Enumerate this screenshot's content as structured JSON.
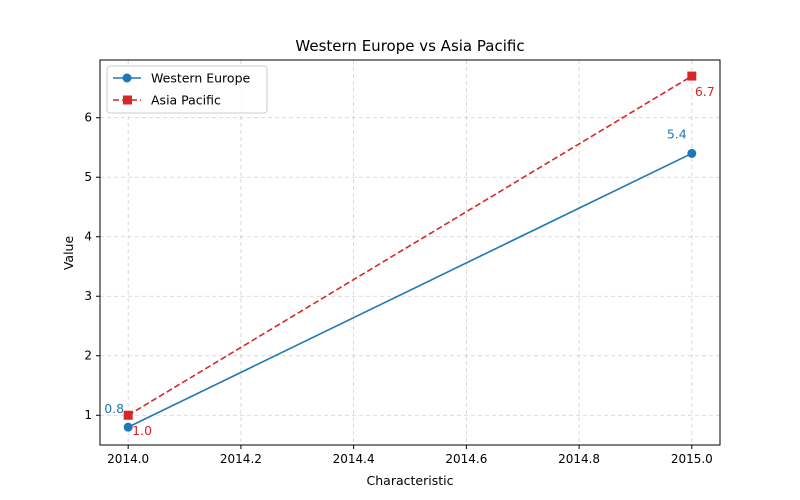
{
  "chart_data": {
    "type": "line",
    "title": "Western Europe vs Asia Pacific",
    "xlabel": "Characteristic",
    "ylabel": "Value",
    "x": [
      2014,
      2015
    ],
    "xlim": [
      2013.95,
      2015.05
    ],
    "ylim": [
      0.5,
      6.97
    ],
    "xticks": [
      2014.0,
      2014.2,
      2014.4,
      2014.6,
      2014.8,
      2015.0
    ],
    "xtick_labels": [
      "2014.0",
      "2014.2",
      "2014.4",
      "2014.6",
      "2014.8",
      "2015.0"
    ],
    "yticks": [
      1,
      2,
      3,
      4,
      5,
      6
    ],
    "ytick_labels": [
      "1",
      "2",
      "3",
      "4",
      "5",
      "6"
    ],
    "grid": true,
    "legend_position": "top-left",
    "series": [
      {
        "name": "Western Europe",
        "values": [
          0.8,
          5.4
        ],
        "labels": [
          "0.8",
          "5.4"
        ],
        "color": "#1f77b4",
        "line_style": "solid",
        "marker": "circle"
      },
      {
        "name": "Asia Pacific",
        "values": [
          1.0,
          6.7
        ],
        "labels": [
          "1.0",
          "6.7"
        ],
        "color": "#d62728",
        "line_style": "dashed",
        "marker": "square"
      }
    ]
  }
}
